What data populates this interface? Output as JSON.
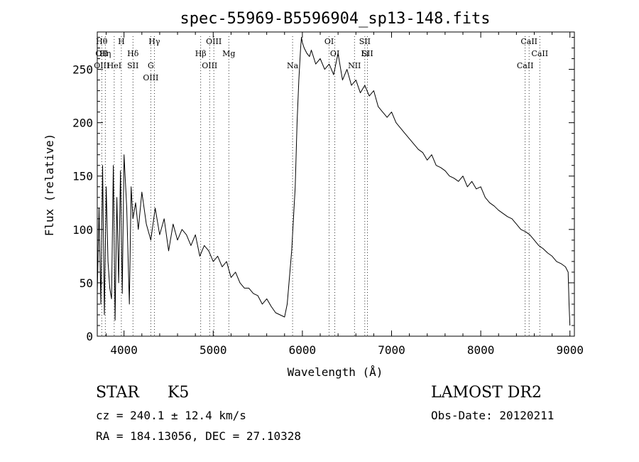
{
  "chart_data": {
    "type": "line",
    "title": "spec-55969-B5596904_sp13-148.fits",
    "xlabel": "Wavelength (Å)",
    "ylabel": "Flux (relative)",
    "xlim": [
      3700,
      9050
    ],
    "ylim": [
      0,
      285
    ],
    "xticks": [
      4000,
      5000,
      6000,
      7000,
      8000,
      9000
    ],
    "xtick_labels": [
      "4000",
      "5000",
      "6000",
      "7000",
      "8000",
      "9000"
    ],
    "yticks": [
      0,
      50,
      100,
      150,
      200,
      250
    ],
    "ytick_labels": [
      "0",
      "50",
      "100",
      "150",
      "200",
      "250"
    ],
    "grid": false,
    "series": [
      {
        "name": "",
        "color": "#000000",
        "x": [
          3700,
          3720,
          3740,
          3760,
          3780,
          3800,
          3820,
          3840,
          3860,
          3880,
          3900,
          3920,
          3940,
          3960,
          3980,
          4000,
          4030,
          4060,
          4080,
          4100,
          4130,
          4160,
          4200,
          4250,
          4300,
          4350,
          4400,
          4450,
          4500,
          4550,
          4600,
          4650,
          4700,
          4750,
          4800,
          4850,
          4900,
          4950,
          5000,
          5050,
          5100,
          5150,
          5200,
          5250,
          5300,
          5350,
          5400,
          5450,
          5500,
          5550,
          5600,
          5650,
          5700,
          5750,
          5800,
          5830,
          5860,
          5880,
          5900,
          5920,
          5940,
          5960,
          5980,
          5990,
          6000,
          6020,
          6050,
          6080,
          6100,
          6150,
          6200,
          6250,
          6300,
          6350,
          6400,
          6450,
          6500,
          6550,
          6600,
          6650,
          6700,
          6750,
          6800,
          6850,
          6900,
          6950,
          7000,
          7050,
          7100,
          7150,
          7200,
          7250,
          7300,
          7350,
          7400,
          7450,
          7500,
          7550,
          7600,
          7650,
          7700,
          7750,
          7800,
          7850,
          7900,
          7950,
          8000,
          8050,
          8100,
          8150,
          8200,
          8250,
          8300,
          8350,
          8400,
          8450,
          8500,
          8550,
          8600,
          8650,
          8700,
          8750,
          8800,
          8850,
          8900,
          8950,
          8980,
          8990,
          9000
        ],
        "y": [
          40,
          120,
          30,
          160,
          20,
          140,
          70,
          45,
          35,
          160,
          15,
          130,
          50,
          155,
          40,
          170,
          120,
          30,
          140,
          110,
          125,
          100,
          135,
          105,
          90,
          120,
          95,
          110,
          80,
          105,
          90,
          100,
          95,
          85,
          95,
          75,
          85,
          80,
          70,
          75,
          65,
          70,
          55,
          60,
          50,
          45,
          45,
          40,
          38,
          30,
          35,
          28,
          22,
          20,
          18,
          30,
          60,
          80,
          110,
          140,
          200,
          240,
          270,
          280,
          275,
          270,
          265,
          262,
          268,
          255,
          260,
          250,
          255,
          245,
          265,
          240,
          250,
          235,
          240,
          228,
          235,
          225,
          230,
          215,
          210,
          205,
          210,
          200,
          195,
          190,
          185,
          180,
          175,
          172,
          165,
          170,
          160,
          158,
          155,
          150,
          148,
          145,
          150,
          140,
          145,
          138,
          140,
          130,
          125,
          122,
          118,
          115,
          112,
          110,
          105,
          100,
          98,
          95,
          90,
          85,
          82,
          78,
          75,
          70,
          68,
          65,
          60,
          30,
          10
        ]
      }
    ],
    "line_markers": [
      {
        "x": 3750,
        "labels": [
          "Hθ",
          "OII",
          "OIII"
        ]
      },
      {
        "x": 3790,
        "labels": [
          "Hη"
        ]
      },
      {
        "x": 3890,
        "labels": [
          "HeI"
        ]
      },
      {
        "x": 3970,
        "labels": [
          "H"
        ]
      },
      {
        "x": 4100,
        "labels": [
          "Hδ",
          "SII"
        ]
      },
      {
        "x": 4300,
        "labels": [
          "G",
          "OIII"
        ]
      },
      {
        "x": 4340,
        "labels": [
          "Hγ"
        ]
      },
      {
        "x": 4860,
        "labels": [
          "Hβ"
        ]
      },
      {
        "x": 4960,
        "labels": [
          "OIII"
        ]
      },
      {
        "x": 5007,
        "labels": [
          "OIII"
        ]
      },
      {
        "x": 5175,
        "labels": [
          "Mg"
        ]
      },
      {
        "x": 5890,
        "labels": [
          "Na"
        ]
      },
      {
        "x": 6300,
        "labels": [
          "OI"
        ]
      },
      {
        "x": 6364,
        "labels": [
          "OI"
        ]
      },
      {
        "x": 6584,
        "labels": [
          "NII"
        ]
      },
      {
        "x": 6700,
        "labels": [
          "SII",
          "Li"
        ]
      },
      {
        "x": 6730,
        "labels": [
          "SII"
        ]
      },
      {
        "x": 8498,
        "labels": [
          "CaII"
        ]
      },
      {
        "x": 8542,
        "labels": [
          "CaII"
        ]
      },
      {
        "x": 8662,
        "labels": [
          "CaII"
        ]
      }
    ]
  },
  "info": {
    "object_class": "STAR",
    "subclass": "K5",
    "survey": "LAMOST DR2",
    "cz": "cz = 240.1 ± 12.4 km/s",
    "obs_date": "Obs-Date: 20120211",
    "coords": "RA = 184.13056, DEC =  27.10328"
  }
}
